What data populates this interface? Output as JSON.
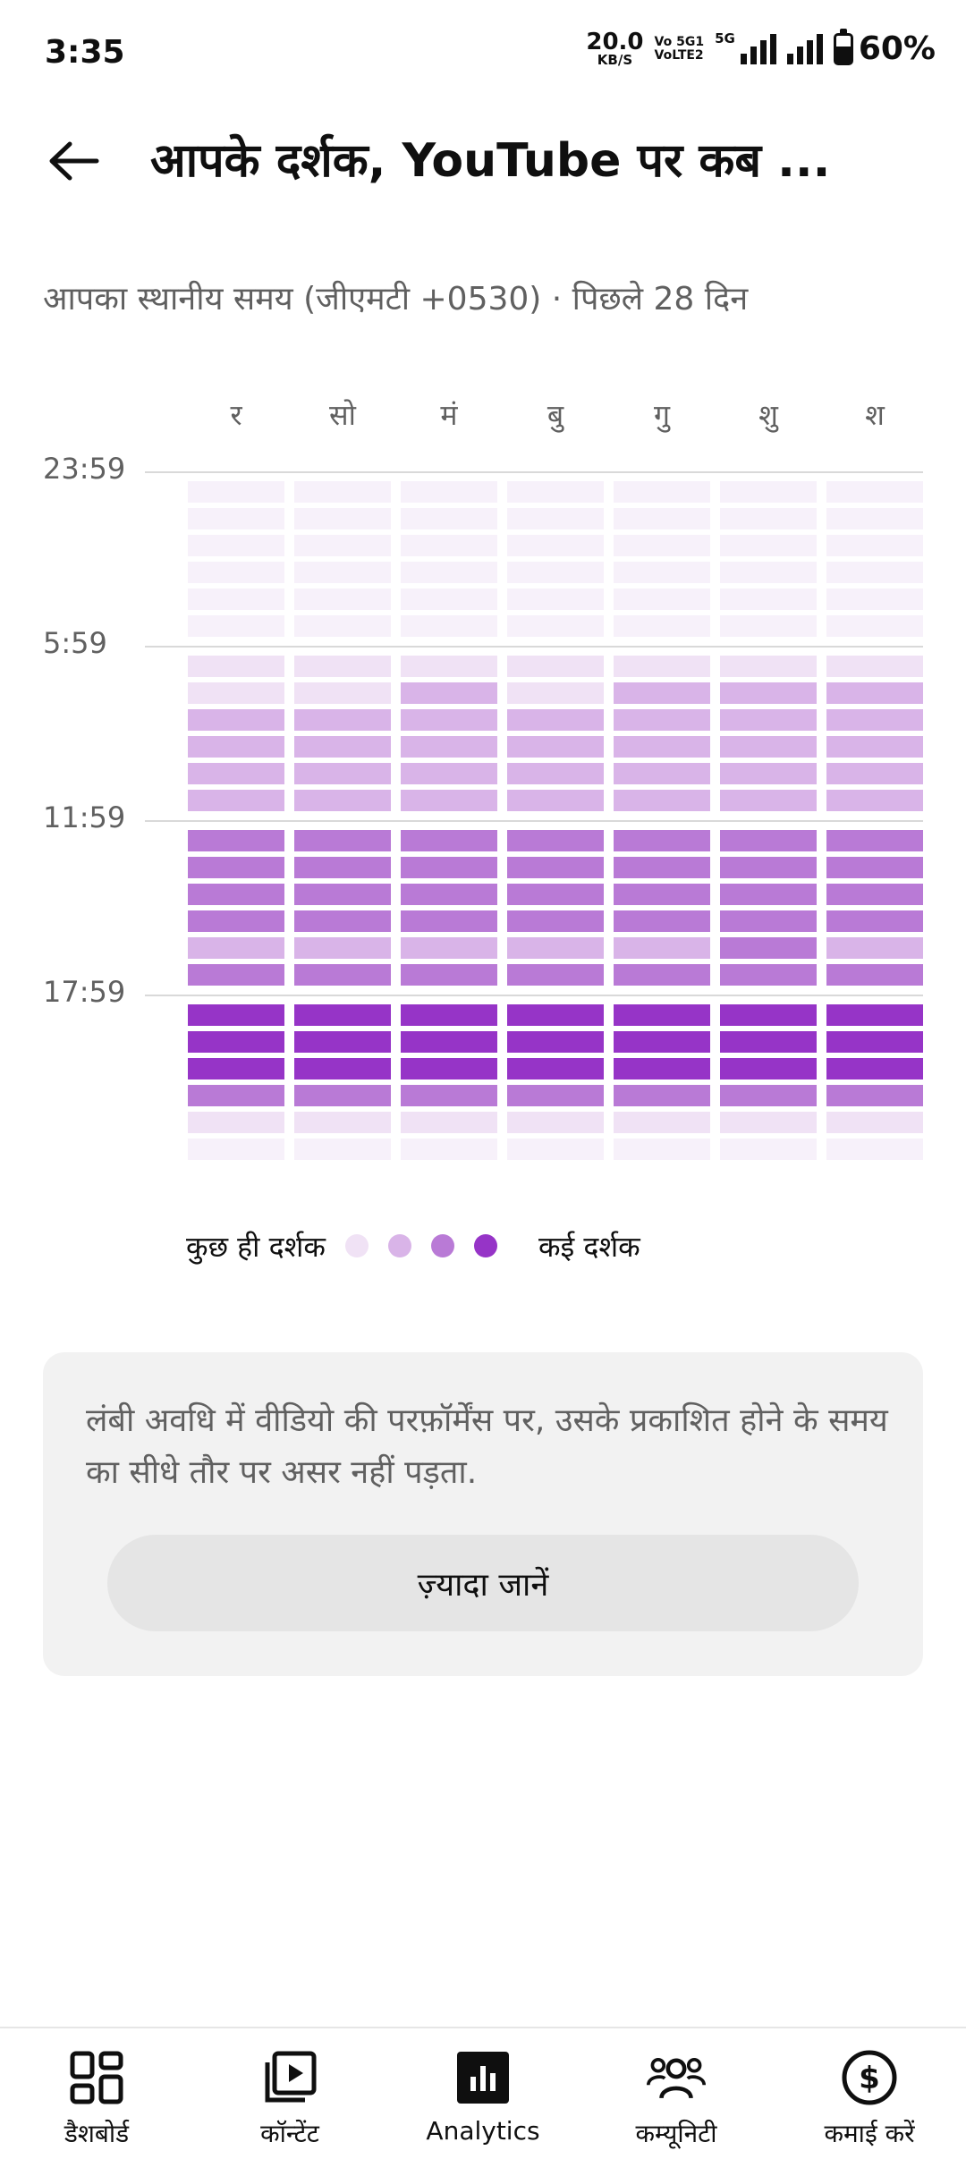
{
  "status_bar": {
    "time": "3:35",
    "net_speed_value": "20.0",
    "net_speed_unit": "KB/S",
    "volte_line1": "Vo 5G1",
    "volte_line2": "VoLTE2",
    "network": "5G",
    "battery": "60%",
    "battery_level": 0.6
  },
  "header": {
    "back_icon": "arrow-left-icon",
    "title": "आपके दर्शक, YouTube पर कब ..."
  },
  "subtitle": "आपका स्थानीय समय (जीएमटी +0530) · पिछले 28 दिन",
  "chart_data": {
    "type": "heatmap",
    "days": [
      "र",
      "सो",
      "मं",
      "बु",
      "गु",
      "शु",
      "श"
    ],
    "hour_labels": [
      "23:59",
      "5:59",
      "11:59",
      "17:59"
    ],
    "levels_note": "0=very low, 1=low, 2=medium, 3=high, 4=very high",
    "rows": [
      [
        0,
        0,
        0,
        0,
        0,
        0,
        0
      ],
      [
        0,
        0,
        0,
        0,
        0,
        0,
        0
      ],
      [
        0,
        0,
        0,
        0,
        0,
        0,
        0
      ],
      [
        0,
        0,
        0,
        0,
        0,
        0,
        0
      ],
      [
        0,
        0,
        0,
        0,
        0,
        0,
        0
      ],
      [
        0,
        0,
        0,
        0,
        0,
        0,
        0
      ],
      [
        1,
        1,
        1,
        1,
        1,
        1,
        1
      ],
      [
        1,
        1,
        2,
        1,
        2,
        2,
        2
      ],
      [
        2,
        2,
        2,
        2,
        2,
        2,
        2
      ],
      [
        2,
        2,
        2,
        2,
        2,
        2,
        2
      ],
      [
        2,
        2,
        2,
        2,
        2,
        2,
        2
      ],
      [
        2,
        2,
        2,
        2,
        2,
        2,
        2
      ],
      [
        3,
        3,
        3,
        3,
        3,
        3,
        3
      ],
      [
        3,
        3,
        3,
        3,
        3,
        3,
        3
      ],
      [
        3,
        3,
        3,
        3,
        3,
        3,
        3
      ],
      [
        3,
        3,
        3,
        3,
        3,
        3,
        3
      ],
      [
        2,
        2,
        2,
        2,
        2,
        3,
        2
      ],
      [
        3,
        3,
        3,
        3,
        3,
        3,
        3
      ],
      [
        4,
        4,
        4,
        4,
        4,
        4,
        4
      ],
      [
        4,
        4,
        4,
        4,
        4,
        4,
        4
      ],
      [
        4,
        4,
        4,
        4,
        4,
        4,
        4
      ],
      [
        3,
        3,
        3,
        3,
        3,
        3,
        3
      ],
      [
        1,
        1,
        1,
        1,
        1,
        1,
        1
      ],
      [
        0,
        0,
        0,
        0,
        0,
        0,
        0
      ]
    ],
    "colors": [
      "#f7f1fa",
      "#f0e2f5",
      "#d9b4e8",
      "#b97ad6",
      "#9634c7"
    ]
  },
  "legend": {
    "low_label": "कुछ ही दर्शक",
    "high_label": "कई दर्शक",
    "dot_colors": [
      "#f0e2f5",
      "#d9b4e8",
      "#b97ad6",
      "#9634c7"
    ]
  },
  "info_card": {
    "text": "लंबी अवधि में वीडियो की परफ़ॉर्मेंस पर, उसके प्रकाशित होने के समय का सीधे तौर पर असर नहीं पड़ता.",
    "button_label": "ज़्यादा जानें"
  },
  "bottom_nav": {
    "items": [
      {
        "label": "डैशबोर्ड",
        "icon": "dashboard-grid-icon",
        "active": false
      },
      {
        "label": "कॉन्टेंट",
        "icon": "content-play-icon",
        "active": false
      },
      {
        "label": "Analytics",
        "icon": "analytics-bar-icon",
        "active": true
      },
      {
        "label": "कम्यूनिटी",
        "icon": "community-people-icon",
        "active": false
      },
      {
        "label": "कमाई करें",
        "icon": "earn-dollar-icon",
        "active": false
      }
    ]
  }
}
